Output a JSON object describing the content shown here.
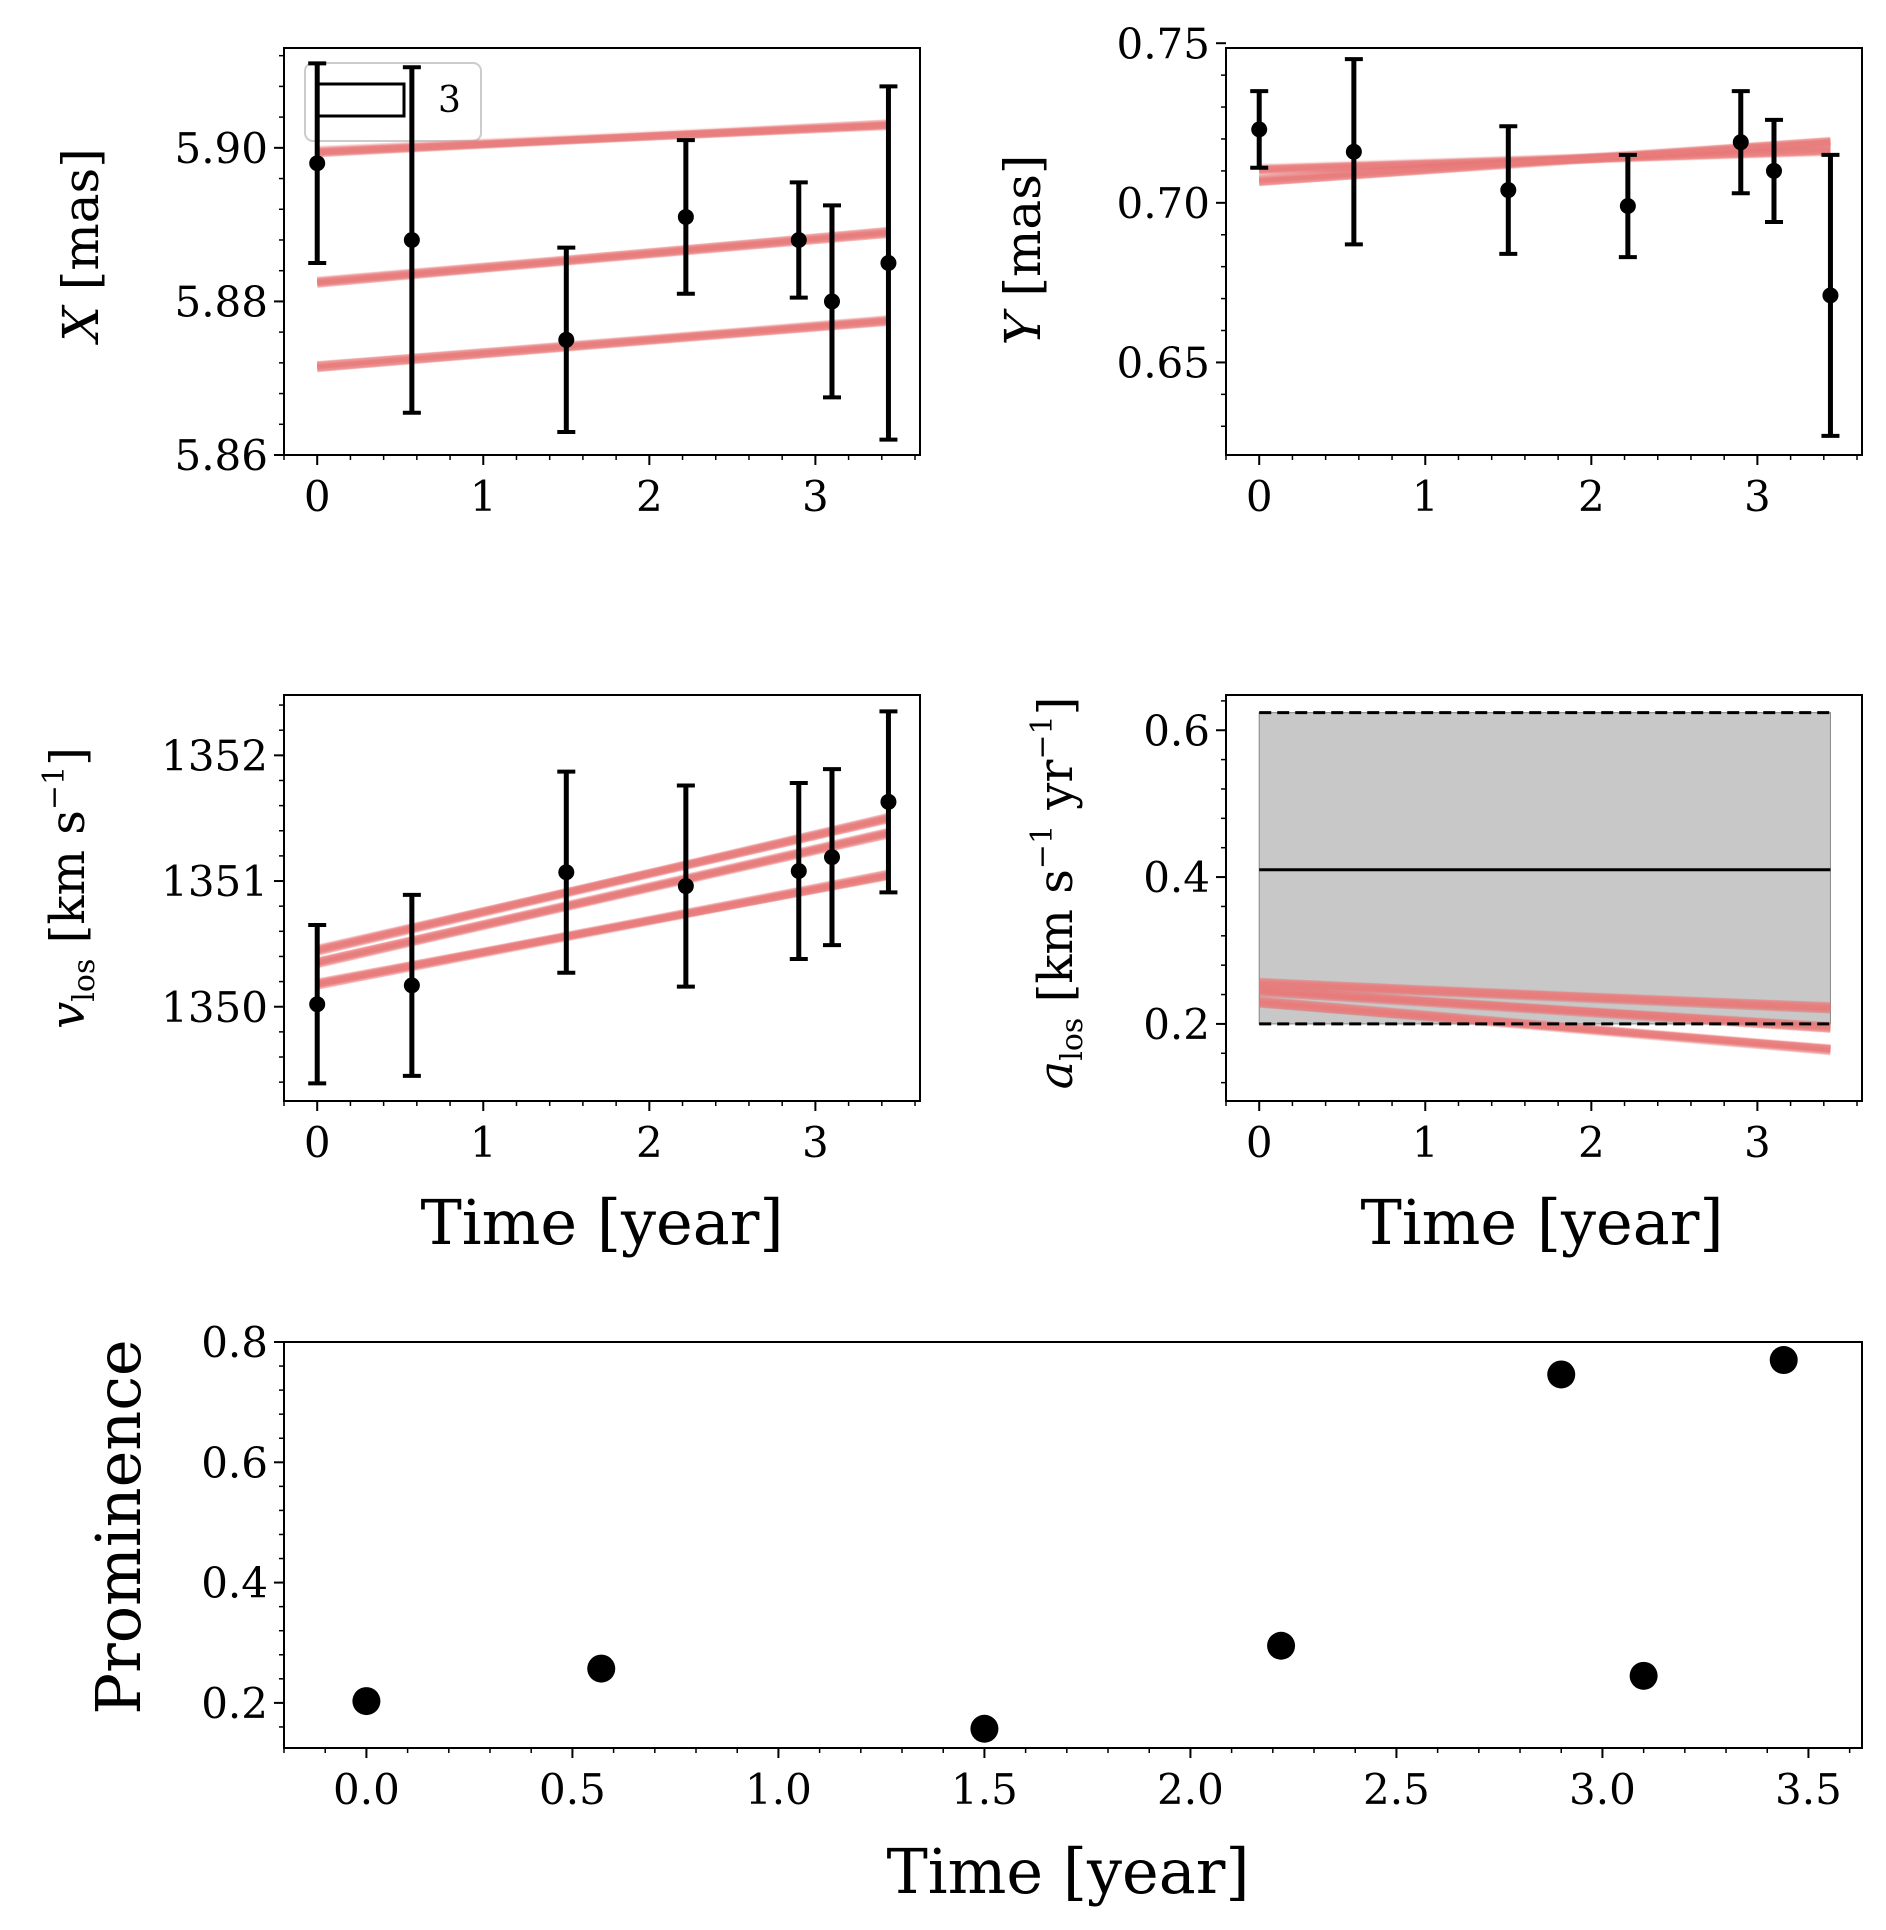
{
  "figure": {
    "x_label": "Time [year]",
    "tick_color": "#000000",
    "model_color": "#f08080",
    "model_dark_color": "#d96a6a",
    "band_color": "#c8c8c8"
  },
  "chart_data": [
    {
      "id": "x",
      "type": "scatter",
      "title": "",
      "ylabel_main": "X",
      "ylabel_unit": "[mas]",
      "xlabel": "",
      "xlim": [
        -0.2,
        3.63
      ],
      "ylim": [
        5.86,
        5.913
      ],
      "xticks": [
        "0",
        "1",
        "2",
        "3"
      ],
      "xtick_values": [
        0,
        1,
        2,
        3
      ],
      "yticks": [
        "5.86",
        "5.88",
        "5.90"
      ],
      "ytick_values": [
        5.86,
        5.88,
        5.9
      ],
      "legend": {
        "label": "3",
        "position": "top-left"
      },
      "points": {
        "x": [
          0.0,
          0.57,
          1.5,
          2.22,
          2.9,
          3.1,
          3.44
        ],
        "y": [
          5.898,
          5.888,
          5.875,
          5.891,
          5.888,
          5.88,
          5.885
        ],
        "err": [
          0.013,
          0.0225,
          0.012,
          0.01,
          0.0075,
          0.0125,
          0.023
        ]
      },
      "model_bands": [
        {
          "start": 5.8995,
          "end": 5.903
        },
        {
          "start": 5.8825,
          "end": 5.889
        },
        {
          "start": 5.8715,
          "end": 5.8775
        }
      ]
    },
    {
      "id": "y",
      "type": "scatter",
      "title": "",
      "ylabel_main": "Y",
      "ylabel_unit": "[mas]",
      "xlabel": "",
      "xlim": [
        -0.2,
        3.63
      ],
      "ylim": [
        0.621,
        0.7485
      ],
      "xticks": [
        "0",
        "1",
        "2",
        "3"
      ],
      "xtick_values": [
        0,
        1,
        2,
        3
      ],
      "yticks": [
        "0.65",
        "0.70",
        "0.75"
      ],
      "ytick_values": [
        0.65,
        0.7,
        0.75
      ],
      "points": {
        "x": [
          0.0,
          0.57,
          1.5,
          2.22,
          2.9,
          3.1,
          3.44
        ],
        "y": [
          0.723,
          0.716,
          0.704,
          0.699,
          0.719,
          0.71,
          0.671
        ],
        "err": [
          0.012,
          0.029,
          0.02,
          0.016,
          0.016,
          0.016,
          0.044
        ]
      },
      "model_bands": [
        {
          "start": 0.7105,
          "end": 0.7165
        },
        {
          "start": 0.707,
          "end": 0.719
        }
      ]
    },
    {
      "id": "vlos",
      "type": "scatter",
      "title": "",
      "ylabel_main": "v",
      "ylabel_sub": "los",
      "ylabel_unit": "[km s",
      "ylabel_sup": "−1",
      "ylabel_close": "]",
      "xlabel": "Time [year]",
      "xlim": [
        -0.2,
        3.63
      ],
      "ylim": [
        1349.25,
        1352.48
      ],
      "xticks": [
        "0",
        "1",
        "2",
        "3"
      ],
      "xtick_values": [
        0,
        1,
        2,
        3
      ],
      "yticks": [
        "1350",
        "1351",
        "1352"
      ],
      "ytick_values": [
        1350,
        1351,
        1352
      ],
      "points": {
        "x": [
          0.0,
          0.57,
          1.5,
          2.22,
          2.9,
          3.1,
          3.44
        ],
        "y": [
          1350.02,
          1350.17,
          1351.07,
          1350.96,
          1351.08,
          1351.19,
          1351.63
        ],
        "err": [
          0.63,
          0.72,
          0.8,
          0.8,
          0.7,
          0.7,
          0.72
        ]
      },
      "model_bands": [
        {
          "start": 1350.35,
          "end": 1351.38
        },
        {
          "start": 1350.18,
          "end": 1351.05
        },
        {
          "start": 1350.45,
          "end": 1351.5
        }
      ]
    },
    {
      "id": "alos",
      "type": "line",
      "title": "",
      "ylabel_main": "a",
      "ylabel_sub": "los",
      "ylabel_unit": "[km s",
      "ylabel_sup": "−1",
      "ylabel_mid": " yr",
      "ylabel_sup2": "−1",
      "ylabel_close": "]",
      "xlabel": "Time [year]",
      "xlim": [
        -0.2,
        3.63
      ],
      "ylim": [
        0.095,
        0.648
      ],
      "xticks": [
        "0",
        "1",
        "2",
        "3"
      ],
      "xtick_values": [
        0,
        1,
        2,
        3
      ],
      "yticks": [
        "0.2",
        "0.4",
        "0.6"
      ],
      "ytick_values": [
        0.2,
        0.4,
        0.6
      ],
      "band": {
        "x_start": 0.0,
        "x_end": 3.44,
        "lower": 0.2,
        "upper": 0.624,
        "center": 0.41
      },
      "model_bands": [
        {
          "start": 0.255,
          "end": 0.222
        },
        {
          "start": 0.245,
          "end": 0.195
        },
        {
          "start": 0.23,
          "end": 0.165
        }
      ]
    },
    {
      "id": "prominence",
      "type": "scatter",
      "title": "",
      "ylabel_main": "Prominence",
      "xlabel": "Time [year]",
      "xlim": [
        -0.2,
        3.63
      ],
      "ylim": [
        0.125,
        0.8
      ],
      "xticks": [
        "0.0",
        "0.5",
        "1.0",
        "1.5",
        "2.0",
        "2.5",
        "3.0",
        "3.5"
      ],
      "xtick_values": [
        0,
        0.5,
        1.0,
        1.5,
        2.0,
        2.5,
        3.0,
        3.5
      ],
      "yticks": [
        "0.2",
        "0.4",
        "0.6",
        "0.8"
      ],
      "ytick_values": [
        0.2,
        0.4,
        0.6,
        0.8
      ],
      "points": {
        "x": [
          0.0,
          0.57,
          1.5,
          2.22,
          2.9,
          3.1,
          3.44
        ],
        "y": [
          0.203,
          0.257,
          0.157,
          0.295,
          0.746,
          0.245,
          0.77
        ]
      }
    }
  ]
}
